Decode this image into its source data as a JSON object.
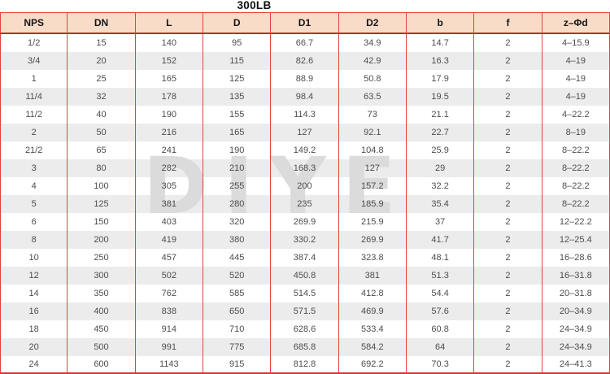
{
  "title": "300LB",
  "watermark": {
    "text": "DIYE",
    "color": "#dbdbdb"
  },
  "colors": {
    "header_background": "#f9dcc8",
    "grid_red": "#e4423c",
    "header_rule_dark_red": "#b2322b",
    "bottom_rule_red": "#cf3a32",
    "stripe_gray": "#ececec",
    "body_text": "#4d4d4d",
    "header_text": "#141414",
    "title_text": "#111111"
  },
  "table": {
    "columns": [
      {
        "key": "nps",
        "label": "NPS"
      },
      {
        "key": "dn",
        "label": "DN"
      },
      {
        "key": "l",
        "label": "L"
      },
      {
        "key": "d",
        "label": "D"
      },
      {
        "key": "d1",
        "label": "D1"
      },
      {
        "key": "d2",
        "label": "D2"
      },
      {
        "key": "b",
        "label": "b"
      },
      {
        "key": "f",
        "label": "f"
      },
      {
        "key": "z_phi_d",
        "label": "z–Φd"
      }
    ],
    "rows": [
      [
        "1/2",
        "15",
        "140",
        "95",
        "66.7",
        "34.9",
        "14.7",
        "2",
        "4–15.9"
      ],
      [
        "3/4",
        "20",
        "152",
        "115",
        "82.6",
        "42.9",
        "16.3",
        "2",
        "4–19"
      ],
      [
        "1",
        "25",
        "165",
        "125",
        "88.9",
        "50.8",
        "17.9",
        "2",
        "4–19"
      ],
      [
        "11/4",
        "32",
        "178",
        "135",
        "98.4",
        "63.5",
        "19.5",
        "2",
        "4–19"
      ],
      [
        "11/2",
        "40",
        "190",
        "155",
        "114.3",
        "73",
        "21.1",
        "2",
        "4–22.2"
      ],
      [
        "2",
        "50",
        "216",
        "165",
        "127",
        "92.1",
        "22.7",
        "2",
        "8–19"
      ],
      [
        "21/2",
        "65",
        "241",
        "190",
        "149.2",
        "104.8",
        "25.9",
        "2",
        "8–22.2"
      ],
      [
        "3",
        "80",
        "282",
        "210",
        "168.3",
        "127",
        "29",
        "2",
        "8–22.2"
      ],
      [
        "4",
        "100",
        "305",
        "255",
        "200",
        "157.2",
        "32.2",
        "2",
        "8–22.2"
      ],
      [
        "5",
        "125",
        "381",
        "280",
        "235",
        "185.9",
        "35.4",
        "2",
        "8–22.2"
      ],
      [
        "6",
        "150",
        "403",
        "320",
        "269.9",
        "215.9",
        "37",
        "2",
        "12–22.2"
      ],
      [
        "8",
        "200",
        "419",
        "380",
        "330.2",
        "269.9",
        "41.7",
        "2",
        "12–25.4"
      ],
      [
        "10",
        "250",
        "457",
        "445",
        "387.4",
        "323.8",
        "48.1",
        "2",
        "16–28.6"
      ],
      [
        "12",
        "300",
        "502",
        "520",
        "450.8",
        "381",
        "51.3",
        "2",
        "16–31.8"
      ],
      [
        "14",
        "350",
        "762",
        "585",
        "514.5",
        "412.8",
        "54.4",
        "2",
        "20–31.8"
      ],
      [
        "16",
        "400",
        "838",
        "650",
        "571.5",
        "469.9",
        "57.6",
        "2",
        "20–34.9"
      ],
      [
        "18",
        "450",
        "914",
        "710",
        "628.6",
        "533.4",
        "60.8",
        "2",
        "24–34.9"
      ],
      [
        "20",
        "500",
        "991",
        "775",
        "685.8",
        "584.2",
        "64",
        "2",
        "24–34.9"
      ],
      [
        "24",
        "600",
        "1143",
        "915",
        "812.8",
        "692.2",
        "70.3",
        "2",
        "24–41.3"
      ]
    ]
  }
}
